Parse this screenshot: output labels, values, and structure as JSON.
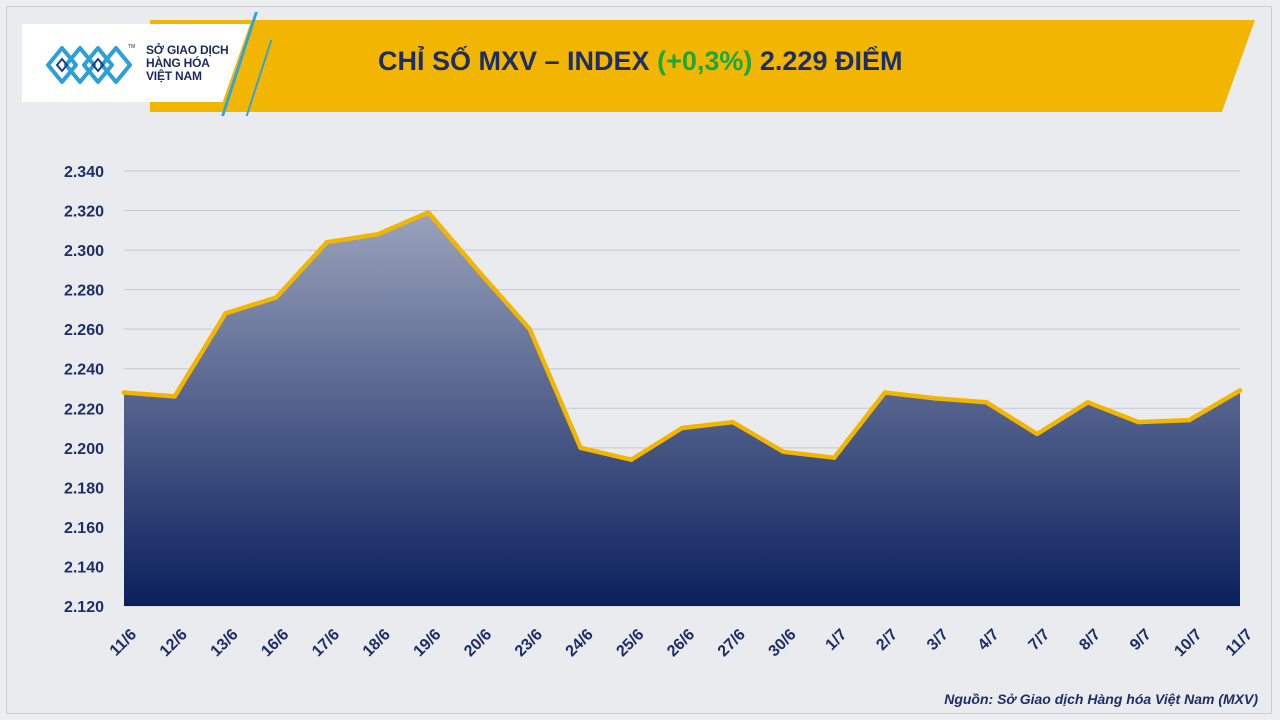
{
  "logo": {
    "line1": "SỞ GIAO DỊCH",
    "line2": "HÀNG HÓA",
    "line3": "VIỆT NAM",
    "tm": "TM"
  },
  "header": {
    "title_main": "CHỈ SỐ MXV – INDEX",
    "title_change": "(+0,3%)",
    "title_value": "2.229 ĐIỂM"
  },
  "source": "Nguồn: Sở Giao dịch Hàng hóa Việt Nam (MXV)",
  "colors": {
    "line": "#f2b600",
    "area_top": "#9aa3bc",
    "area_bottom": "#0a1f5c",
    "change": "#1aa83c",
    "title": "#1d2d68"
  },
  "chart_data": {
    "type": "area",
    "title": "CHỈ SỐ MXV – INDEX (+0,3%) 2.229 ĐIỂM",
    "xlabel": "",
    "ylabel": "",
    "ylim": [
      2120,
      2340
    ],
    "grid": true,
    "yticks": [
      2120,
      2140,
      2160,
      2180,
      2200,
      2220,
      2240,
      2260,
      2280,
      2300,
      2320,
      2340
    ],
    "ytick_labels": [
      "2.120",
      "2.140",
      "2.160",
      "2.180",
      "2.200",
      "2.220",
      "2.240",
      "2.260",
      "2.280",
      "2.300",
      "2.320",
      "2.340"
    ],
    "categories": [
      "11/6",
      "12/6",
      "13/6",
      "16/6",
      "17/6",
      "18/6",
      "19/6",
      "20/6",
      "23/6",
      "24/6",
      "25/6",
      "26/6",
      "27/6",
      "30/6",
      "1/7",
      "2/7",
      "3/7",
      "4/7",
      "7/7",
      "8/7",
      "9/7",
      "10/7",
      "11/7"
    ],
    "series": [
      {
        "name": "MXV-Index",
        "values": [
          2228,
          2226,
          2268,
          2276,
          2304,
          2308,
          2319,
          2289,
          2260,
          2200,
          2194,
          2210,
          2213,
          2198,
          2195,
          2228,
          2225,
          2223,
          2207,
          2223,
          2213,
          2214,
          2229
        ]
      }
    ]
  }
}
